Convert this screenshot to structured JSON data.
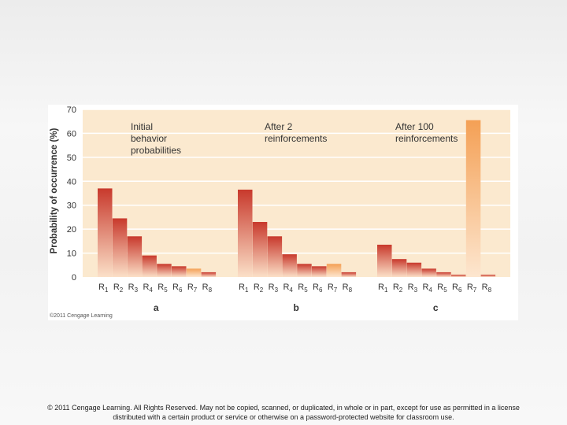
{
  "chart_data": {
    "type": "bar",
    "ylabel": "Probability of occurrence (%)",
    "ylim": [
      0,
      70
    ],
    "yticks": [
      0,
      10,
      20,
      30,
      40,
      50,
      60,
      70
    ],
    "grid": true,
    "categories": [
      "R1",
      "R2",
      "R3",
      "R4",
      "R5",
      "R6",
      "R7",
      "R8"
    ],
    "panels": [
      {
        "letter": "a",
        "annotation": [
          "Initial",
          "behavior",
          "probabilities"
        ],
        "values": [
          37,
          24.5,
          17,
          9,
          5.5,
          4.5,
          3.5,
          2
        ],
        "highlight_index": 6
      },
      {
        "letter": "b",
        "annotation": [
          "After 2",
          "reinforcements"
        ],
        "values": [
          36.5,
          23,
          17,
          9.5,
          5.5,
          4.5,
          5.5,
          2
        ],
        "highlight_index": 6
      },
      {
        "letter": "c",
        "annotation": [
          "After 100",
          "reinforcements"
        ],
        "values": [
          13.5,
          7.5,
          6,
          3.5,
          2,
          1,
          65.5,
          1
        ],
        "highlight_index": 6
      }
    ],
    "colors": {
      "panel_bg": "#fbe9cf",
      "bar_top": "#c8392c",
      "bar_bottom": "#fbe0c8",
      "highlight_top": "#f4a055",
      "highlight_bottom": "#fde6cf",
      "grid": "#ffffff"
    }
  },
  "figure_credit": "©2011 Cengage Learning",
  "footer": {
    "line1": "© 2011 Cengage Learning. All Rights Reserved. May not be copied, scanned, or duplicated, in whole or in part, except for use as permitted in a license",
    "line2": "distributed with a certain product or service or otherwise on a password-protected website for classroom use."
  }
}
